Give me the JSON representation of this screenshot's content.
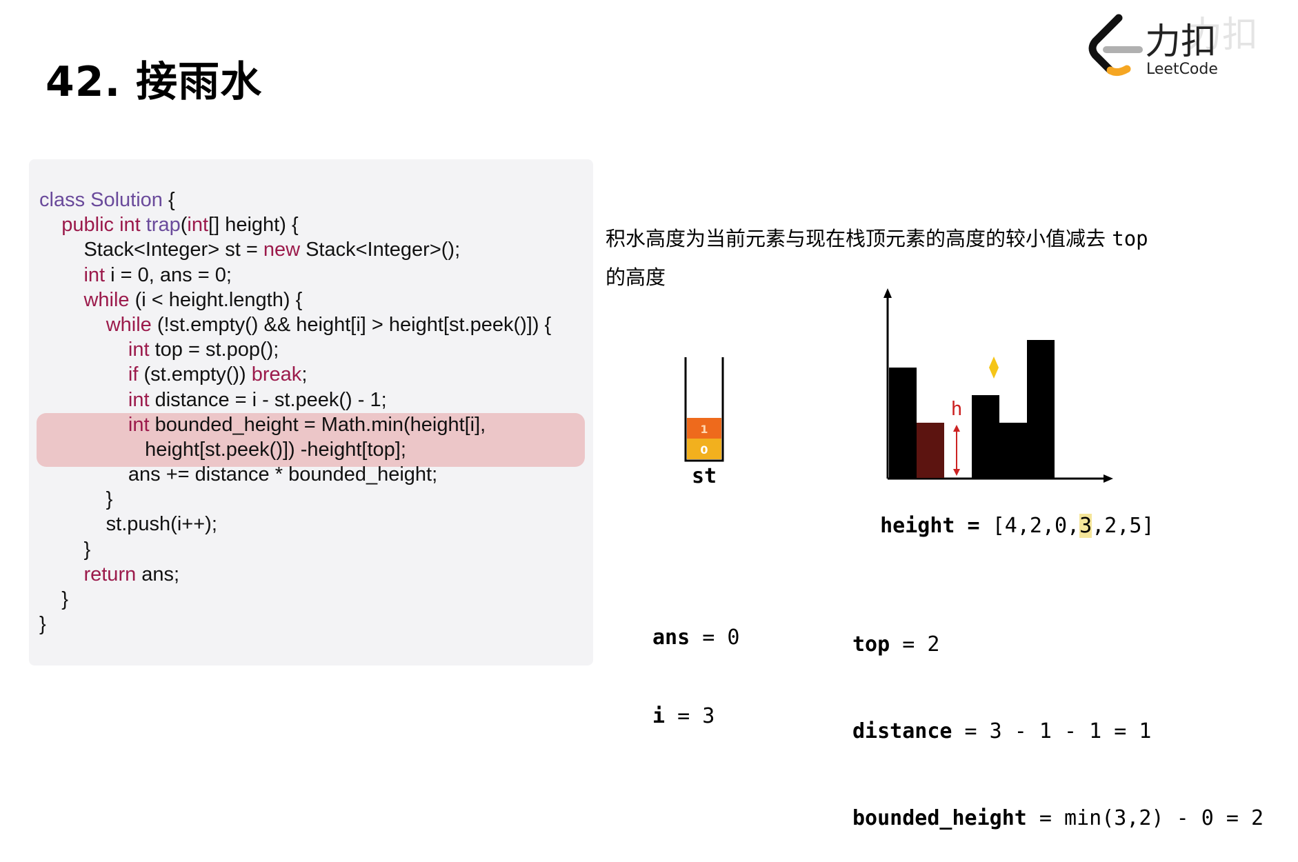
{
  "page": {
    "title": "42. 接雨水",
    "logo": {
      "cn": "力扣",
      "en": "LeetCode",
      "watermark": "力扣"
    }
  },
  "code": {
    "lines": [
      [
        [
          "cls",
          "class Solution "
        ],
        [
          "txt",
          "{"
        ]
      ],
      [
        [
          "txt",
          "    "
        ],
        [
          "kw",
          "public int "
        ],
        [
          "cls",
          "trap"
        ],
        [
          "txt",
          "("
        ],
        [
          "kw",
          "int"
        ],
        [
          "txt",
          "[] height) {"
        ]
      ],
      [
        [
          "txt",
          "        Stack<Integer> st = "
        ],
        [
          "kw",
          "new "
        ],
        [
          "txt",
          "Stack<Integer>();"
        ]
      ],
      [
        [
          "txt",
          "        "
        ],
        [
          "kw",
          "int "
        ],
        [
          "txt",
          "i = 0, ans = 0;"
        ]
      ],
      [
        [
          "txt",
          "        "
        ],
        [
          "kw",
          "while "
        ],
        [
          "txt",
          "(i < height.length) {"
        ]
      ],
      [
        [
          "txt",
          "            "
        ],
        [
          "kw",
          "while "
        ],
        [
          "txt",
          "(!st.empty() && height[i] > height[st.peek()]) {"
        ]
      ],
      [
        [
          "txt",
          "                "
        ],
        [
          "kw",
          "int "
        ],
        [
          "txt",
          "top = st.pop();"
        ]
      ],
      [
        [
          "txt",
          "                "
        ],
        [
          "kw",
          "if "
        ],
        [
          "txt",
          "(st.empty()) "
        ],
        [
          "kw",
          "break"
        ],
        [
          "txt",
          ";"
        ]
      ],
      [
        [
          "txt",
          "                "
        ],
        [
          "kw",
          "int "
        ],
        [
          "txt",
          "distance = i - st.peek() - 1;"
        ]
      ],
      [
        [
          "txt",
          "                "
        ],
        [
          "kw",
          "int "
        ],
        [
          "txt",
          "bounded_height = Math.min(height[i],"
        ]
      ],
      [
        [
          "txt",
          "                   height[st.peek()]) -height[top];"
        ]
      ],
      [
        [
          "txt",
          "                ans += distance * bounded_height;"
        ]
      ],
      [
        [
          "txt",
          "            }"
        ]
      ],
      [
        [
          "txt",
          "            st.push(i++);"
        ]
      ],
      [
        [
          "txt",
          "        }"
        ]
      ],
      [
        [
          "txt",
          "        "
        ],
        [
          "kw",
          "return "
        ],
        [
          "txt",
          "ans;"
        ]
      ],
      [
        [
          "txt",
          "    }"
        ]
      ],
      [
        [
          "txt",
          "}"
        ]
      ]
    ],
    "highlighted_lines": [
      9,
      10
    ]
  },
  "description": {
    "line1": "积水高度为当前元素与现在栈顶元素的高度的较小值减去 ",
    "line1_code": "top",
    "line2": "的高度"
  },
  "stack": {
    "label": "st",
    "items": [
      {
        "value": "0",
        "color": "#f2b01e"
      },
      {
        "value": "1",
        "color": "#ee6a1c"
      }
    ]
  },
  "chart_data": {
    "type": "bar",
    "values": [
      4,
      2,
      0,
      3,
      2,
      5
    ],
    "bar_colors": [
      "#000000",
      "#5c1410",
      "#000000",
      "#000000",
      "#000000",
      "#000000"
    ],
    "annotation": {
      "label": "h",
      "color": "#cc2222",
      "at_index": 2,
      "height": 2
    },
    "marker_index": 3,
    "marker_color": "#f5c518"
  },
  "array_line": {
    "label": "height",
    "eq": " = ",
    "open": "[",
    "close": "]",
    "values": [
      "4",
      "2",
      "0",
      "3",
      "2",
      "5"
    ],
    "highlight_index": 3
  },
  "vars": {
    "ans_label": "ans",
    "ans_value": " = 0",
    "i_label": "i",
    "i_value": " = 3",
    "top_label": "top",
    "top_value": " = 2",
    "distance_label": "distance",
    "distance_value": " = 3 - 1 - 1 = 1",
    "bh_label": "bounded_height",
    "bh_value": " = min(3,2) - 0 = 2"
  },
  "colors": {
    "highlight": "#ecc6c8",
    "panel": "#f3f3f5",
    "keyword": "#9b1a4b",
    "class": "#6a4a9b",
    "logo_orange": "#f5a623",
    "array_highlight": "#f5e69a"
  }
}
